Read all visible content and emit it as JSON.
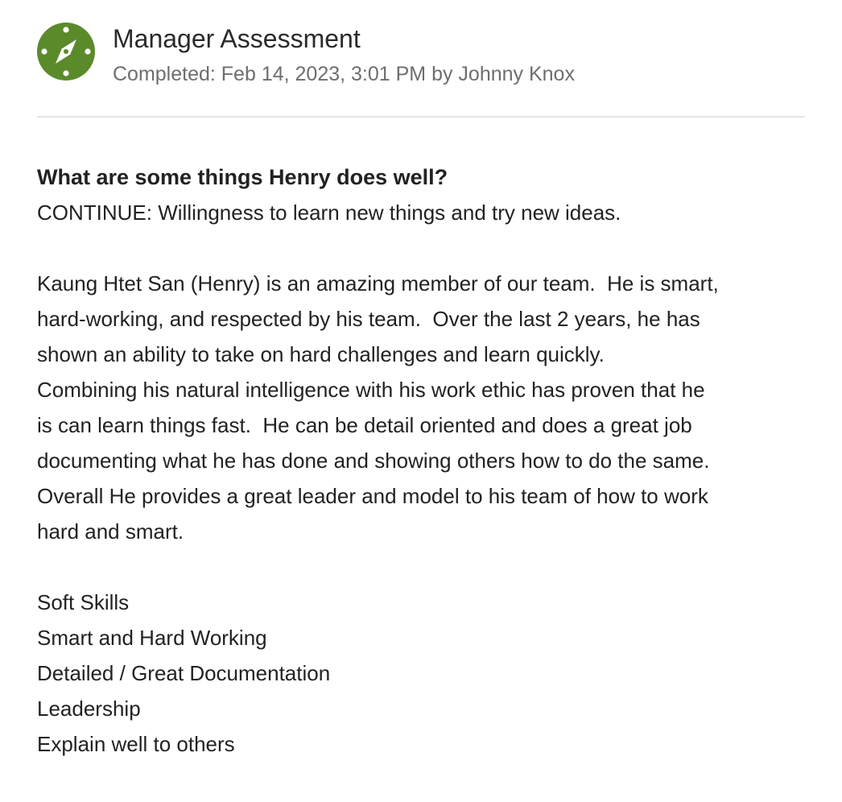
{
  "header": {
    "icon": "compass-icon",
    "icon_color": "#5b8a2b",
    "title": "Manager Assessment",
    "subtitle": "Completed: Feb 14, 2023, 3:01 PM by Johnny Knox"
  },
  "question": {
    "text": "What are some things Henry does well?"
  },
  "answer": {
    "intro": "CONTINUE: Willingness to learn new things and try new ideas.",
    "paragraph_lines": [
      "Kaung Htet San (Henry) is an amazing member of our team.  He is smart,",
      "hard-working, and respected by his team.  Over the last 2 years, he has",
      "shown an ability to take on hard challenges and learn quickly.",
      "Combining his natural intelligence with his work ethic has proven that he",
      "is can learn things fast.  He can be detail oriented and does a great job",
      "documenting what he has done and showing others how to do the same.",
      "Overall He provides a great leader and model to his team of how to work",
      "hard and smart."
    ],
    "skills": [
      "Soft Skills",
      "Smart and Hard Working",
      "Detailed / Great Documentation",
      "Leadership",
      "Explain well to others"
    ]
  }
}
